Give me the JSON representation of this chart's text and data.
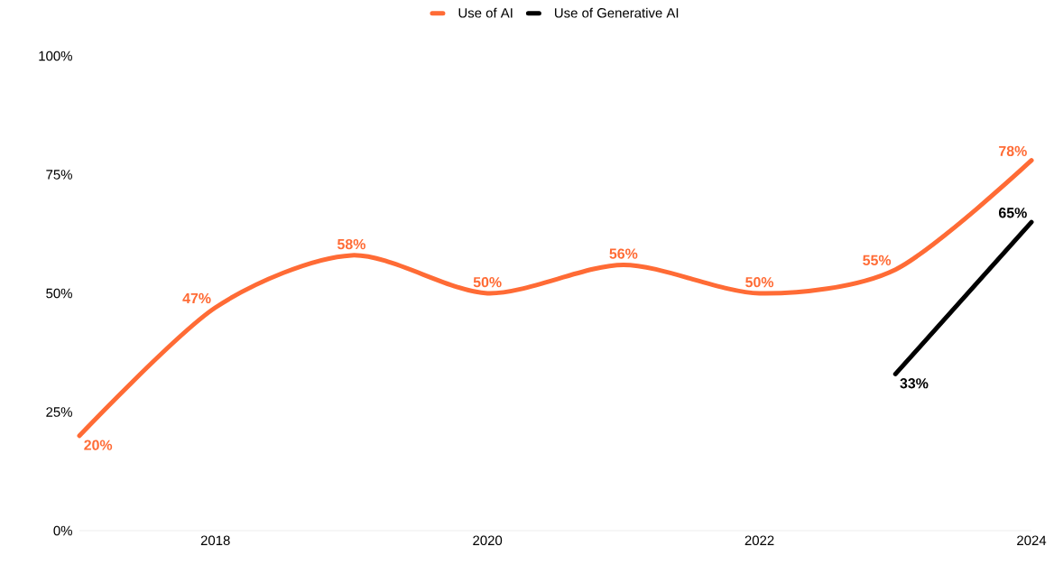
{
  "chart_data": {
    "type": "line",
    "x": [
      2017,
      2018,
      2019,
      2020,
      2021,
      2022,
      2023,
      2024
    ],
    "series": [
      {
        "name": "Use of AI",
        "color": "#ff6b35",
        "values": [
          20,
          47,
          58,
          50,
          56,
          50,
          55,
          78
        ],
        "value_labels": [
          "20%",
          "47%",
          "58%",
          "50%",
          "56%",
          "50%",
          "55%",
          "78%"
        ]
      },
      {
        "name": "Use of Generative AI",
        "color": "#000000",
        "x": [
          2023,
          2024
        ],
        "values": [
          33,
          65
        ],
        "value_labels": [
          "33%",
          "65%"
        ]
      }
    ],
    "xlim": [
      2017,
      2024
    ],
    "xticks": [
      2018,
      2020,
      2022,
      2024
    ],
    "ylim": [
      0,
      100
    ],
    "yticks": [
      {
        "value": 0,
        "label": "0%"
      },
      {
        "value": 25,
        "label": "25%"
      },
      {
        "value": 50,
        "label": "50%"
      },
      {
        "value": 75,
        "label": "75%"
      },
      {
        "value": 100,
        "label": "100%"
      }
    ],
    "grid": false,
    "legend": "top",
    "marker": "none",
    "line_style": "solid"
  }
}
